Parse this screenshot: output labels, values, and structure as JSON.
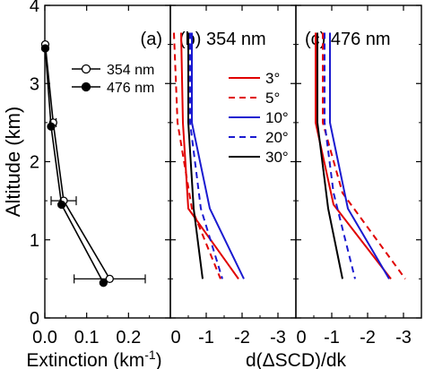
{
  "chart_data": [
    {
      "type": "scatter",
      "panel_label": "(a)",
      "ylabel": "Altitude (km)",
      "xlabel_main": "Extinction (km",
      "xlabel_sup": "-1",
      "xlabel_close": ")",
      "xlim": [
        0,
        0.3
      ],
      "ylim": [
        0,
        4
      ],
      "xticks": [
        0.0,
        0.1,
        0.2
      ],
      "xtick_labels": [
        "0.0",
        "0.1",
        "0.2"
      ],
      "yticks": [
        0,
        1,
        2,
        3,
        4
      ],
      "ytick_labels": [
        "0",
        "1",
        "2",
        "3",
        "4"
      ],
      "legend_placement": "upper-right",
      "series": [
        {
          "name": "354 nm",
          "marker": "open-circle",
          "color": "#000000",
          "points": [
            {
              "x": 0.001,
              "y": 3.5,
              "xerr": 0.0
            },
            {
              "x": 0.02,
              "y": 2.5,
              "xerr": 0.007
            },
            {
              "x": 0.045,
              "y": 1.5,
              "xerr": 0.03
            },
            {
              "x": 0.155,
              "y": 0.5,
              "xerr": 0.085
            }
          ]
        },
        {
          "name": "476 nm",
          "marker": "filled-circle",
          "color": "#000000",
          "points": [
            {
              "x": 0.001,
              "y": 3.45
            },
            {
              "x": 0.015,
              "y": 2.45
            },
            {
              "x": 0.04,
              "y": 1.45
            },
            {
              "x": 0.14,
              "y": 0.45
            }
          ]
        }
      ]
    },
    {
      "type": "line",
      "panel_label": "(b) 354 nm",
      "xlim": [
        0,
        -3.5
      ],
      "ylim": [
        0,
        4
      ],
      "xticks": [
        0,
        -1,
        -2,
        -3
      ],
      "xtick_labels": [
        "0",
        "-1",
        "-2",
        "-3"
      ],
      "legend_placement": "center-right",
      "series": [
        {
          "name": "3°",
          "color": "#e00000",
          "dash": "solid",
          "points": [
            [
              -0.3,
              3.65
            ],
            [
              -0.35,
              2.5
            ],
            [
              -0.5,
              1.4
            ],
            [
              -1.9,
              0.5
            ]
          ]
        },
        {
          "name": "5°",
          "color": "#e00000",
          "dash": "dashed",
          "points": [
            [
              -0.1,
              3.65
            ],
            [
              -0.2,
              2.5
            ],
            [
              -0.6,
              1.4
            ],
            [
              -1.4,
              0.5
            ]
          ]
        },
        {
          "name": "10°",
          "color": "#1a1ad0",
          "dash": "solid",
          "points": [
            [
              -0.6,
              3.65
            ],
            [
              -0.6,
              2.5
            ],
            [
              -1.1,
              1.4
            ],
            [
              -2.05,
              0.5
            ]
          ]
        },
        {
          "name": "20°",
          "color": "#1a1ad0",
          "dash": "dashed",
          "points": [
            [
              -0.55,
              3.65
            ],
            [
              -0.55,
              2.5
            ],
            [
              -0.85,
              1.4
            ],
            [
              -1.45,
              0.5
            ]
          ]
        },
        {
          "name": "30°",
          "color": "#000000",
          "dash": "solid",
          "points": [
            [
              -0.5,
              3.65
            ],
            [
              -0.5,
              2.5
            ],
            [
              -0.65,
              1.4
            ],
            [
              -0.9,
              0.5
            ]
          ]
        }
      ]
    },
    {
      "type": "line",
      "panel_label": "(c) 476 nm",
      "xlim": [
        0,
        -3.5
      ],
      "ylim": [
        0,
        4
      ],
      "xticks": [
        0,
        -1,
        -2,
        -3
      ],
      "xtick_labels": [
        "0",
        "-1",
        "-2",
        "-3"
      ],
      "series": [
        {
          "name": "3°",
          "color": "#e00000",
          "dash": "solid",
          "points": [
            [
              -0.55,
              3.65
            ],
            [
              -0.55,
              2.5
            ],
            [
              -1.05,
              1.45
            ],
            [
              -2.65,
              0.5
            ]
          ]
        },
        {
          "name": "5°",
          "color": "#e00000",
          "dash": "dashed",
          "points": [
            [
              -0.75,
              3.65
            ],
            [
              -0.75,
              2.5
            ],
            [
              -1.3,
              1.6
            ],
            [
              -3.05,
              0.5
            ]
          ]
        },
        {
          "name": "10°",
          "color": "#1a1ad0",
          "dash": "solid",
          "points": [
            [
              -0.95,
              3.65
            ],
            [
              -0.95,
              2.5
            ],
            [
              -1.45,
              1.4
            ],
            [
              -2.6,
              0.5
            ]
          ]
        },
        {
          "name": "20°",
          "color": "#1a1ad0",
          "dash": "dashed",
          "points": [
            [
              -0.8,
              3.65
            ],
            [
              -0.8,
              2.5
            ],
            [
              -1.05,
              1.6
            ],
            [
              -1.65,
              0.5
            ]
          ]
        },
        {
          "name": "30°",
          "color": "#000000",
          "dash": "solid",
          "points": [
            [
              -0.6,
              3.65
            ],
            [
              -0.6,
              2.5
            ],
            [
              -0.9,
              1.4
            ],
            [
              -1.3,
              0.5
            ]
          ]
        }
      ]
    }
  ],
  "shared_xlabel": "d(ΔSCD)/dk"
}
